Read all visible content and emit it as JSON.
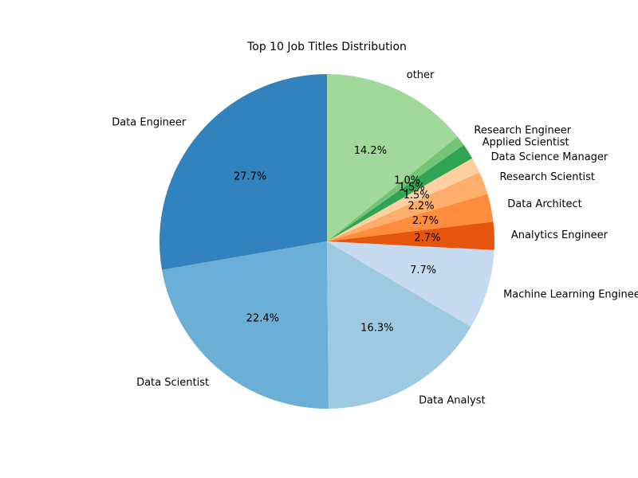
{
  "chart_data": {
    "type": "pie",
    "title": "Top 10 Job Titles Distribution",
    "start_angle_deg": 90,
    "direction": "counterclockwise",
    "slices": [
      {
        "label": "Data Engineer",
        "value": 27.7,
        "pct_label": "27.7%",
        "color": "#3182bd"
      },
      {
        "label": "Data Scientist",
        "value": 22.4,
        "pct_label": "22.4%",
        "color": "#6baed6"
      },
      {
        "label": "Data Analyst",
        "value": 16.3,
        "pct_label": "16.3%",
        "color": "#9ecae1"
      },
      {
        "label": "Machine Learning Engineer",
        "value": 7.7,
        "pct_label": "7.7%",
        "color": "#c6dbef"
      },
      {
        "label": "Analytics Engineer",
        "value": 2.7,
        "pct_label": "2.7%",
        "color": "#e6550d"
      },
      {
        "label": "Data Architect",
        "value": 2.7,
        "pct_label": "2.7%",
        "color": "#fd8d3c"
      },
      {
        "label": "Research Scientist",
        "value": 2.2,
        "pct_label": "2.2%",
        "color": "#fdae6b"
      },
      {
        "label": "Data Science Manager",
        "value": 1.5,
        "pct_label": "1.5%",
        "color": "#fdd0a2"
      },
      {
        "label": "Applied Scientist",
        "value": 1.5,
        "pct_label": "1.5%",
        "color": "#31a354"
      },
      {
        "label": "Research Engineer",
        "value": 1.0,
        "pct_label": "1.0%",
        "color": "#74c476"
      },
      {
        "label": "other",
        "value": 14.2,
        "pct_label": "14.2%",
        "color": "#a1d99b"
      }
    ]
  }
}
